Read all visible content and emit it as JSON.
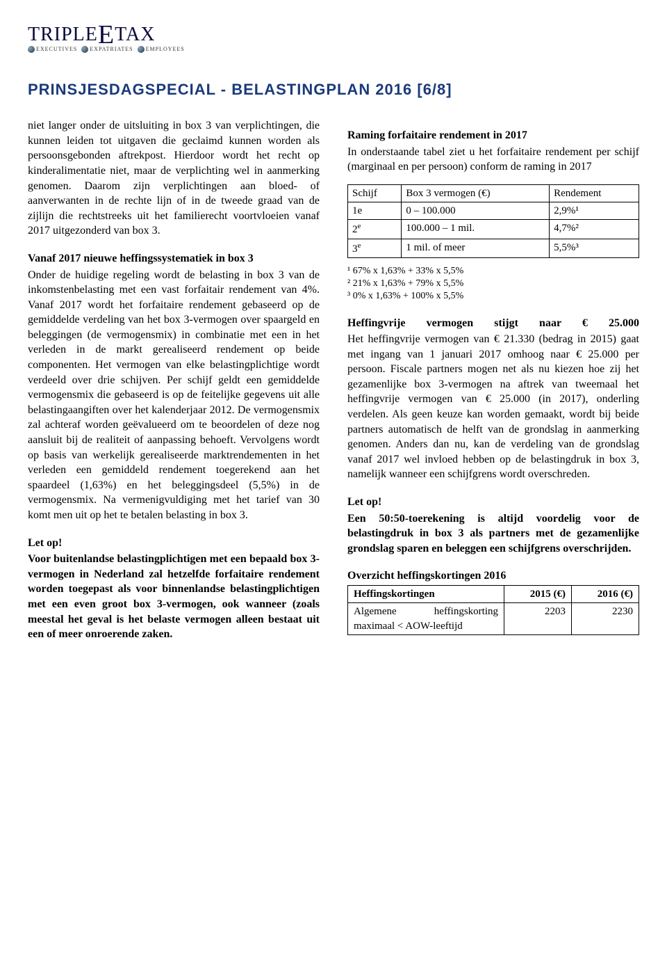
{
  "logo": {
    "part1": "TRIPLE",
    "bigE": "E",
    "part2": "TAX",
    "sub1": "EXECUTIVES",
    "sub2": "EXPATRIATES",
    "sub3": "EMPLOYEES"
  },
  "pageTitle": "PRINSJESDAGSPECIAL - BELASTINGPLAN 2016   [6/8]",
  "left": {
    "p1": "niet langer onder de uitsluiting in box 3 van verplichtingen, die kunnen leiden tot uitgaven die geclaimd kunnen worden als persoonsgebonden aftrekpost. Hierdoor wordt het recht op kinderalimentatie niet, maar de verplichting wel in aanmerking genomen. Daarom zijn verplichtingen aan bloed- of aanverwanten in de rechte lijn of in de tweede graad van de zijlijn die rechtstreeks uit het familierecht voortvloeien vanaf 2017 uitgezonderd van box 3.",
    "h1": "Vanaf 2017 nieuwe heffingssystematiek in box 3",
    "p2": "Onder de huidige regeling wordt de belasting in box 3 van de inkomstenbelasting met een vast forfaitair rendement van 4%. Vanaf 2017 wordt het forfaitaire rendement gebaseerd op de gemiddelde verdeling van het box 3-vermogen over spaargeld en beleggingen (de vermogensmix) in combinatie met een in het verleden in de markt gerealiseerd rendement op beide componenten. Het vermogen van elke belastingplichtige wordt verdeeld over drie schijven. Per schijf geldt een gemiddelde vermogensmix die gebaseerd is op de feitelijke gegevens uit alle belastingaangiften over het kalenderjaar 2012. De vermogensmix zal achteraf worden geëvalueerd om te beoordelen of deze nog aansluit bij de realiteit of aanpassing behoeft. Vervolgens wordt op basis van werkelijk gerealiseerde marktrendementen in het verleden een gemiddeld rendement toegerekend aan het spaardeel (1,63%) en het beleggingsdeel (5,5%) in de vermogensmix. Na vermenigvuldiging met het tarief van 30 komt men uit op het te betalen belasting in box 3.",
    "h2": "Let op!",
    "p3": "Voor buitenlandse belastingplichtigen met een bepaald box 3-vermogen in Nederland zal hetzelfde forfaitaire rendement worden toegepast als voor binnenlandse belastingplichtigen met een even groot box 3-vermogen, ook wanneer (zoals meestal het geval is het belaste vermogen alleen bestaat uit een of meer onroerende zaken."
  },
  "right": {
    "h1": "Raming forfaitaire rendement in 2017",
    "p1": "In onderstaande tabel ziet u het forfaitaire rendement per schijf (marginaal en per persoon) conform de raming in 2017",
    "table1": {
      "headers": [
        "Schijf",
        "Box 3 vermogen (€)",
        "Rendement"
      ],
      "rows": [
        [
          "1e",
          "0 – 100.000",
          "2,9%¹"
        ],
        [
          "2",
          "100.000 – 1 mil.",
          "4,7%²"
        ],
        [
          "3",
          "1 mil. of meer",
          "5,5%³"
        ]
      ]
    },
    "footnotes": [
      "¹ 67% x 1,63% + 33% x 5,5%",
      "² 21% x 1,63% + 79% x 5,5%",
      "³ 0% x 1,63% + 100% x 5,5%"
    ],
    "h2": "Heffingvrije vermogen stijgt naar € 25.000",
    "p2": "Het heffingvrije vermogen van € 21.330 (bedrag in 2015) gaat met ingang van 1 januari 2017 omhoog naar € 25.000 per persoon. Fiscale partners mogen net als nu kiezen hoe zij het gezamenlijke box 3-vermogen na aftrek van tweemaal het heffingvrije vermogen van € 25.000 (in 2017), onderling verdelen. Als geen keuze kan worden gemaakt, wordt bij beide partners automatisch de helft van de grondslag in aanmerking genomen. Anders dan nu, kan de verdeling van de grondslag vanaf 2017 wel invloed hebben op de belastingdruk in box 3, namelijk wanneer een schijfgrens wordt overschreden.",
    "h3": "Let op!",
    "p3": "Een 50:50-toerekening is altijd voordelig voor de belastingdruk in box 3 als partners met de gezamenlijke grondslag sparen en beleggen een schijfgrens overschrijden.",
    "h4": "Overzicht heffingskortingen 2016",
    "table2": {
      "headers": [
        "Heffingskortingen",
        "2015 (€)",
        "2016 (€)"
      ],
      "rows": [
        [
          "Algemene heffingskorting maximaal < AOW-leeftijd",
          "2203",
          "2230"
        ]
      ]
    }
  }
}
